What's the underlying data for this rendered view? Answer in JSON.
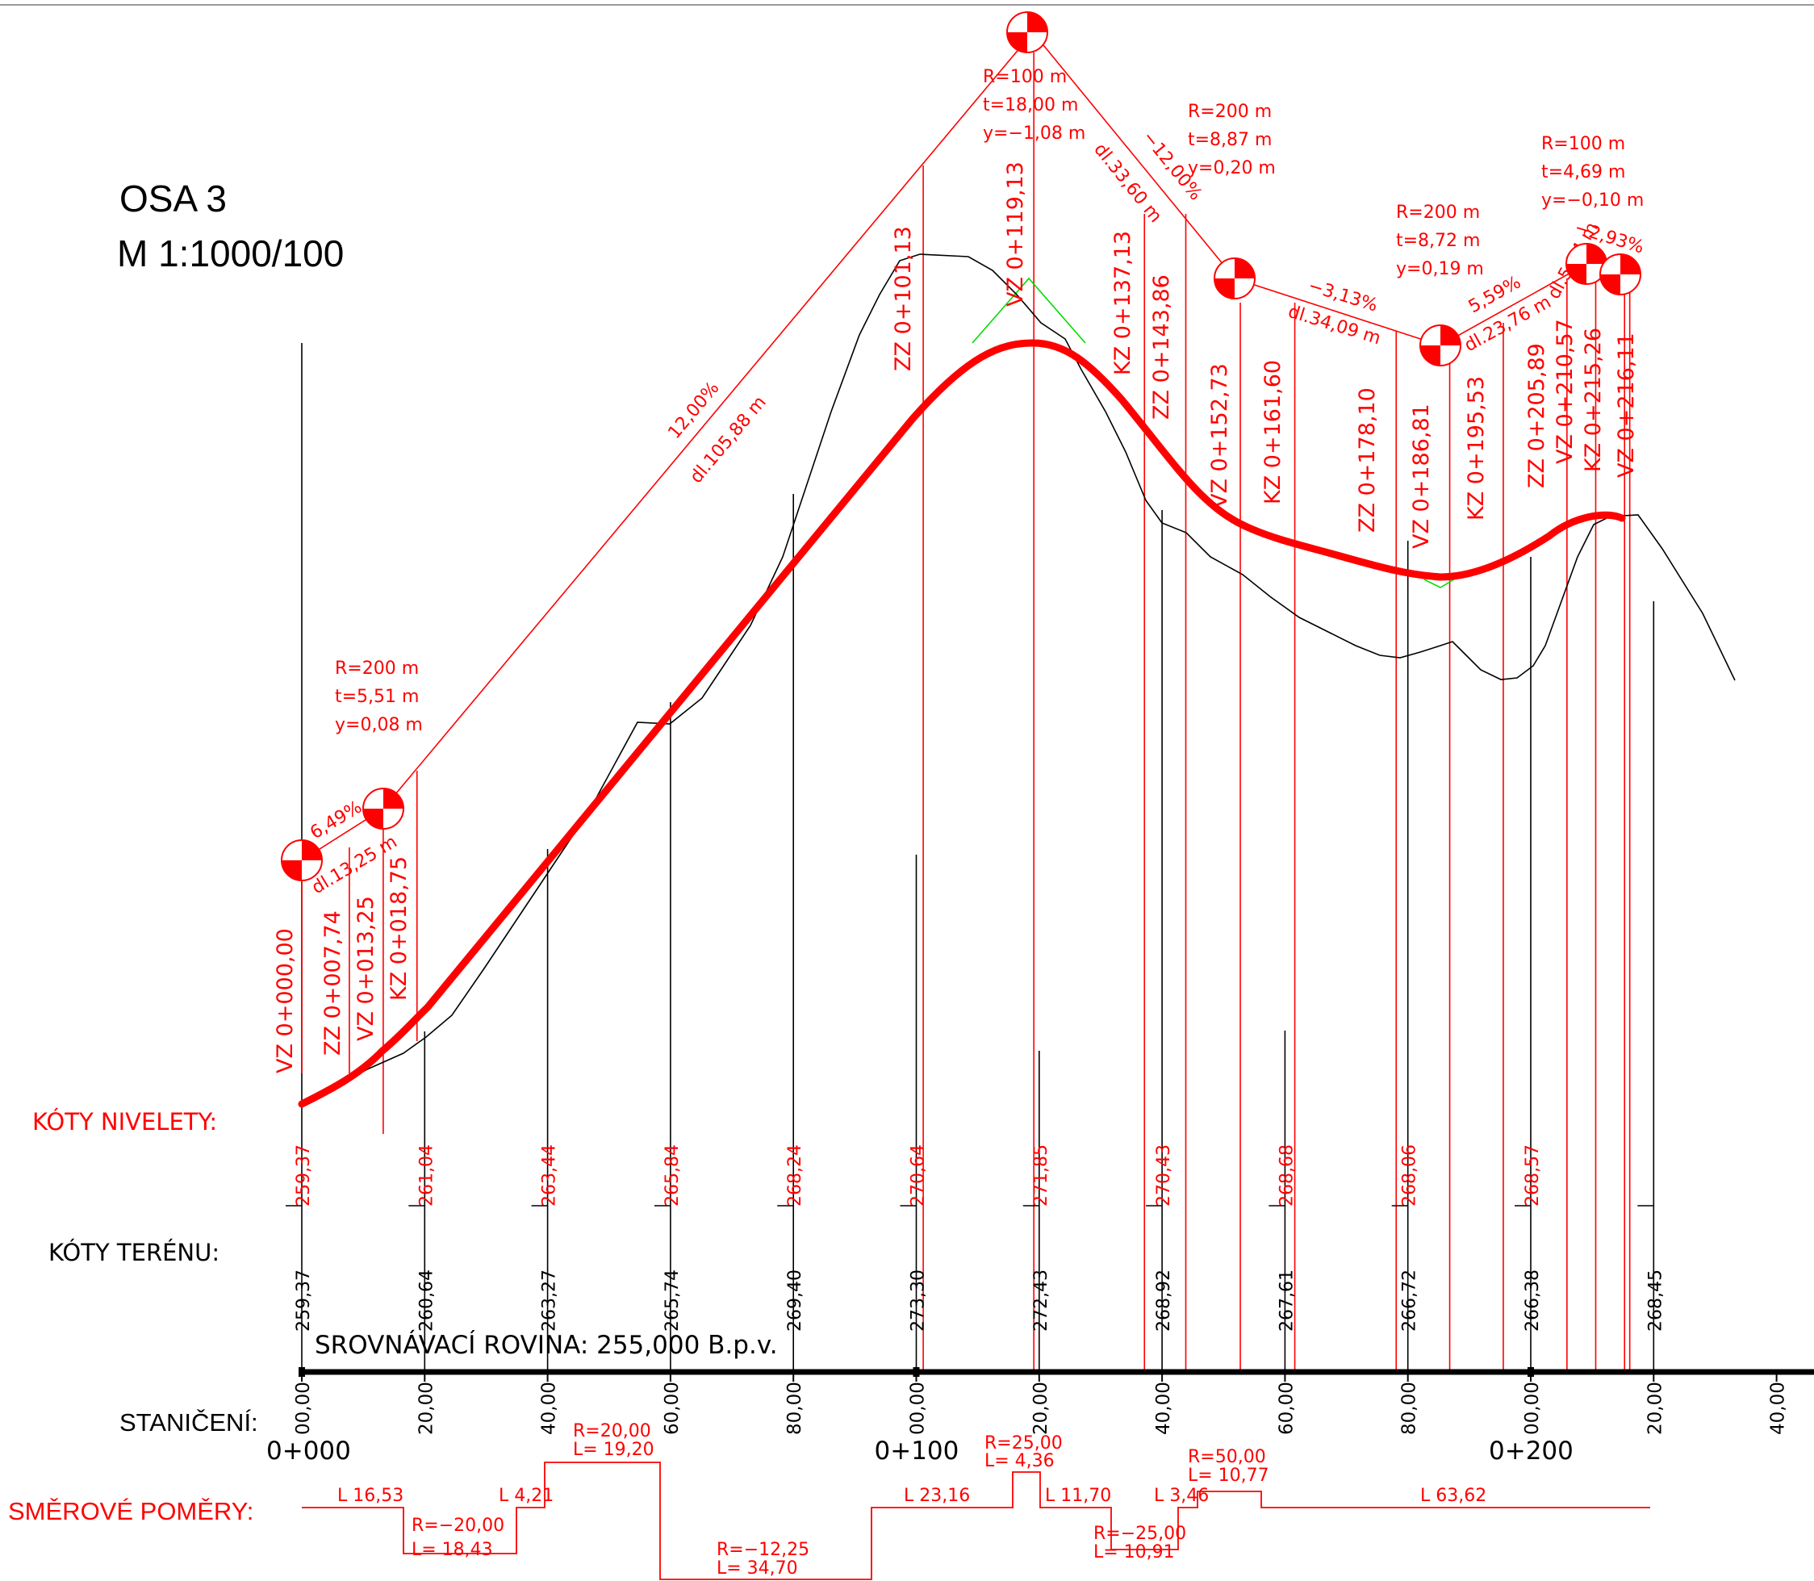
{
  "title": {
    "line1": "OSA 3",
    "line2": "M  1:1000/100"
  },
  "colors": {
    "red": "#ff0000",
    "black": "#000000",
    "green": "#00dd00",
    "thin_red": "#ee2222"
  },
  "labels": {
    "koty_nivelety": "KÓTY  NIVELETY:",
    "koty_terenu": "KÓTY  TERÉNU:",
    "staniceni": "STANIČENÍ:",
    "smerove": "SMĚROVÉ POMĚRY:",
    "srovnavaci": "SROVNÁVACÍ  ROVINA:  255,000  B.p.v."
  },
  "chainage_major": [
    "0+000",
    "0+100",
    "0+200"
  ],
  "stations": [
    {
      "ch": "00,00",
      "niv": "259,37",
      "ter": "259,37"
    },
    {
      "ch": "20,00",
      "niv": "261,04",
      "ter": "260,64"
    },
    {
      "ch": "40,00",
      "niv": "263,44",
      "ter": "263,27"
    },
    {
      "ch": "60,00",
      "niv": "265,84",
      "ter": "265,74"
    },
    {
      "ch": "80,00",
      "niv": "268,24",
      "ter": "269,40"
    },
    {
      "ch": "00,00",
      "niv": "270,64",
      "ter": "273,30"
    },
    {
      "ch": "20,00",
      "niv": "271,85",
      "ter": "272,43"
    },
    {
      "ch": "40,00",
      "niv": "270,43",
      "ter": "268,92"
    },
    {
      "ch": "60,00",
      "niv": "268,68",
      "ter": "267,61"
    },
    {
      "ch": "80,00",
      "niv": "268,06",
      "ter": "266,72"
    },
    {
      "ch": "00,00",
      "niv": "268,57",
      "ter": "266,38"
    },
    {
      "ch": "20,00",
      "niv": "",
      "ter": "268,45"
    },
    {
      "ch": "40,00",
      "niv": "",
      "ter": ""
    }
  ],
  "key_points": [
    "VZ  0+000,00",
    "ZZ  0+007,74",
    "VZ  0+013,25",
    "KZ  0+018,75",
    "ZZ  0+101,13",
    "VZ  0+119,13",
    "KZ  0+137,13",
    "ZZ  0+143,86",
    "VZ  0+152,73",
    "KZ  0+161,60",
    "ZZ  0+178,10",
    "VZ  0+186,81",
    "KZ  0+195,53",
    "ZZ  0+205,89",
    "VZ  0+210,57",
    "KZ  0+215,26",
    "VZ  0+216,11"
  ],
  "curves": [
    {
      "lines": [
        "R=200  m",
        "t=5,51  m",
        "y=0,08  m"
      ]
    },
    {
      "lines": [
        "R=100  m",
        "t=18,00  m",
        "y=−1,08  m"
      ]
    },
    {
      "lines": [
        "R=200  m",
        "t=8,87  m",
        "y=0,20  m"
      ]
    },
    {
      "lines": [
        "R=200  m",
        "t=8,72  m",
        "y=0,19  m"
      ]
    },
    {
      "lines": [
        "R=100  m",
        "t=4,69  m",
        "y=−0,10  m"
      ]
    }
  ],
  "grades": [
    {
      "slope": "6,49%",
      "len": "dl.13,25  m"
    },
    {
      "slope": "12,00%",
      "len": "dl.105,88  m"
    },
    {
      "slope": "−12,00%",
      "len": "dl.33,60  m"
    },
    {
      "slope": "−3,13%",
      "len": "dl.34,09  m"
    },
    {
      "slope": "5,59%",
      "len": "dl.23,76  m"
    },
    {
      "slope": "−2,93%",
      "len": "dl.5,54  m"
    }
  ],
  "alignment": [
    {
      "t1": "L  16,53",
      "t2": ""
    },
    {
      "t1": "R=−20,00",
      "t2": "L=  18,43"
    },
    {
      "t1": "L  4,21",
      "t2": ""
    },
    {
      "t1": "R=20,00",
      "t2": "L=  19,20"
    },
    {
      "t1": "R=−12,25",
      "t2": "L=  34,70"
    },
    {
      "t1": "L  23,16",
      "t2": ""
    },
    {
      "t1": "R=25,00",
      "t2": "L=  4,36"
    },
    {
      "t1": "L  11,70",
      "t2": ""
    },
    {
      "t1": "R=−25,00",
      "t2": "L=  10,91"
    },
    {
      "t1": "L  3,46",
      "t2": ""
    },
    {
      "t1": "R=50,00",
      "t2": "L=  10,77"
    },
    {
      "t1": "L  63,62",
      "t2": ""
    }
  ]
}
